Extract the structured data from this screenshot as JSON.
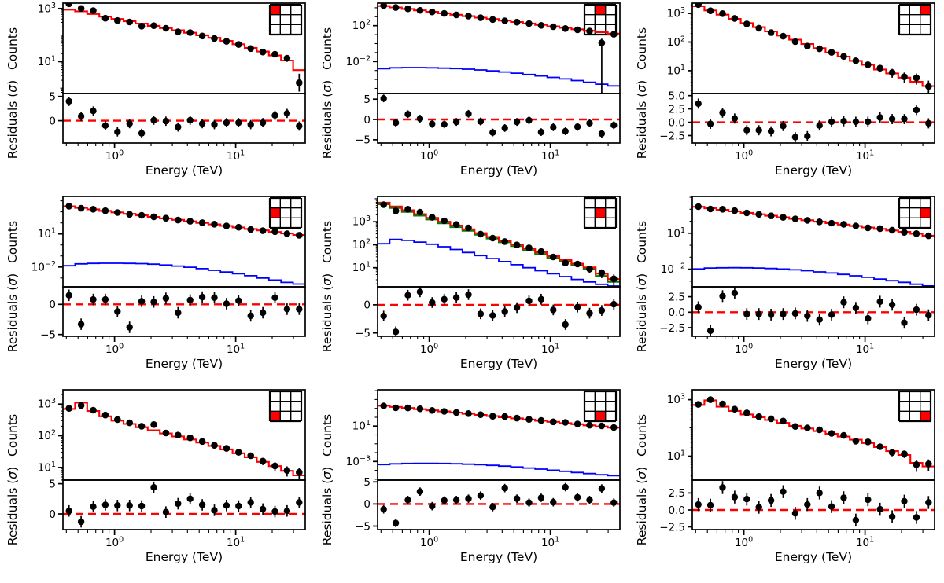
{
  "figure": {
    "xlabel": "Energy (TeV)",
    "ylabel_counts": "Counts",
    "ylabel_residuals": "Residuals (σ)",
    "grid_shape": [
      3,
      3
    ],
    "colors": {
      "model": "#ff0000",
      "model_secondary": "#008000",
      "background_line": "#0000ff",
      "data_points": "#000000",
      "zero_line": "#ff0000",
      "inset_cell": "#ff0000",
      "axes": "#000000"
    },
    "x_tick_exponents": [
      0,
      1
    ],
    "x_minor_ticks": [
      0.4,
      0.5,
      0.6,
      0.7,
      0.8,
      0.9,
      2,
      3,
      4,
      5,
      6,
      7,
      8,
      9,
      20,
      30
    ]
  },
  "energy_bin_edges": [
    0.375,
    0.472,
    0.594,
    0.748,
    0.942,
    1.186,
    1.493,
    1.88,
    2.366,
    2.979,
    3.75,
    4.721,
    5.943,
    7.482,
    9.419,
    11.858,
    14.929,
    18.795,
    23.662,
    29.79,
    37.5
  ],
  "energy_centers": [
    0.421,
    0.53,
    0.667,
    0.84,
    1.057,
    1.331,
    1.676,
    2.11,
    2.656,
    3.343,
    4.209,
    5.299,
    6.671,
    8.398,
    10.573,
    13.311,
    16.757,
    21.096,
    26.559,
    33.437
  ],
  "chart_data": [
    {
      "type": "line",
      "name": "spectrum-top-left",
      "inset_cell": [
        0,
        0
      ],
      "ylim_log": [
        -0.2,
        3.2
      ],
      "y_tick_exponents": [
        3,
        1
      ],
      "y_minor": true,
      "model": [
        900,
        780,
        620,
        490,
        400,
        330,
        270,
        222,
        182,
        150,
        122,
        98,
        78,
        60,
        45,
        33,
        24,
        17,
        11,
        4.8
      ],
      "background": null,
      "model_secondary": null,
      "counts": [
        1500,
        1000,
        830,
        430,
        350,
        310,
        215,
        225,
        180,
        132,
        123,
        92,
        74,
        58,
        44,
        31,
        23,
        19,
        13.5,
        1.6
      ],
      "residuals": [
        4.0,
        0.9,
        2.0,
        -1.0,
        -2.3,
        -0.6,
        -2.6,
        0.1,
        -0.1,
        -1.3,
        0.1,
        -0.6,
        -0.8,
        -0.4,
        -0.4,
        -0.8,
        -0.4,
        1.1,
        1.5,
        -1.1
      ],
      "resid_tick_values": [
        5,
        0
      ],
      "resid_tick_labels": [
        "5",
        "0"
      ],
      "resid_ylim": [
        -4.6,
        5.6
      ],
      "big_errors": [
        {
          "i": 19,
          "lo": 0.75,
          "hi": 3.5
        }
      ]
    },
    {
      "type": "line",
      "name": "spectrum-top-middle",
      "inset_cell": [
        0,
        1
      ],
      "ylim_log": [
        -5.57,
        4.52
      ],
      "y_tick_exponents": [
        2,
        -2
      ],
      "y_minor": false,
      "model": [
        15800,
        10900,
        7500,
        5150,
        3540,
        2430,
        1670,
        1150,
        790,
        545,
        375,
        258,
        177,
        122,
        84,
        57,
        40,
        27,
        19,
        13
      ],
      "background": [
        0.0016,
        0.002,
        0.0021,
        0.0021,
        0.002,
        0.00185,
        0.00165,
        0.0014,
        0.00115,
        0.0009,
        0.00068,
        0.0005,
        0.00036,
        0.00025,
        0.00017,
        0.000115,
        7.5e-05,
        4.8e-05,
        3e-05,
        1.9e-05
      ],
      "model_secondary": null,
      "counts": [
        17800,
        10700,
        7800,
        5200,
        3440,
        2330,
        1630,
        1210,
        775,
        495,
        350,
        250,
        174,
        108,
        77,
        49,
        35,
        25,
        1.2,
        11
      ],
      "residuals": [
        5.2,
        -0.8,
        1.3,
        0.2,
        -1.1,
        -1.2,
        -0.6,
        1.4,
        -0.5,
        -3.2,
        -2.1,
        -0.6,
        -0.2,
        -3.1,
        -1.9,
        -2.9,
        -1.8,
        -0.9,
        -3.5,
        -1.4
      ],
      "resid_tick_values": [
        5,
        0,
        -5
      ],
      "resid_tick_labels": [
        "5",
        "0",
        "−5"
      ],
      "resid_ylim": [
        -5.8,
        6.4
      ],
      "big_errors": [
        {
          "i": 18,
          "lo": 3e-06,
          "hi": 3.5
        }
      ]
    },
    {
      "type": "line",
      "name": "spectrum-top-right",
      "inset_cell": [
        0,
        2
      ],
      "ylim_log": [
        0.2,
        3.36
      ],
      "y_tick_exponents": [
        3,
        2,
        1
      ],
      "y_minor": true,
      "model": [
        1780,
        1270,
        905,
        645,
        460,
        330,
        235,
        168,
        120,
        85,
        61,
        43,
        31,
        22,
        16,
        11,
        8,
        5.7,
        4.1,
        2.9
      ],
      "background": null,
      "model_secondary": null,
      "counts": [
        2050,
        1240,
        990,
        670,
        430,
        305,
        213,
        160,
        103,
        72,
        58,
        43.5,
        31.5,
        22.2,
        16.2,
        12.2,
        8.6,
        6.1,
        5.6,
        2.8
      ],
      "residuals": [
        3.5,
        -0.3,
        1.8,
        0.7,
        -1.5,
        -1.5,
        -1.7,
        -0.7,
        -2.8,
        -2.6,
        -0.6,
        0.1,
        0.2,
        0.1,
        0.1,
        0.9,
        0.6,
        0.6,
        2.3,
        -0.2
      ],
      "resid_tick_values": [
        5,
        2.5,
        0,
        -2.5
      ],
      "resid_tick_labels": [
        "5.0",
        "2.5",
        "0.0",
        "−2.5"
      ],
      "resid_ylim": [
        -3.9,
        5.4
      ],
      "big_errors": []
    },
    {
      "type": "line",
      "name": "spectrum-middle-left",
      "inset_cell": [
        1,
        0
      ],
      "ylim_log": [
        -3.8,
        4.4
      ],
      "y_tick_exponents": [
        1,
        -2
      ],
      "y_minor": false,
      "model": [
        3160,
        2300,
        1690,
        1230,
        900,
        660,
        480,
        350,
        257,
        188,
        137,
        100,
        73,
        53,
        39,
        28,
        21,
        15,
        11,
        8
      ],
      "background": [
        0.013,
        0.019,
        0.021,
        0.022,
        0.022,
        0.021,
        0.02,
        0.018,
        0.015,
        0.012,
        0.0095,
        0.007,
        0.005,
        0.0035,
        0.0024,
        0.0016,
        0.001,
        0.00065,
        0.0004,
        0.00028
      ],
      "model_secondary": null,
      "counts": [
        3300,
        2100,
        1730,
        1260,
        870,
        590,
        490,
        355,
        266,
        180,
        140,
        104,
        76,
        53.2,
        40,
        25.5,
        19.5,
        16,
        10.4,
        7.6
      ],
      "residuals": [
        1.5,
        -3.3,
        0.8,
        0.8,
        -1.2,
        -3.8,
        0.5,
        0.4,
        1.0,
        -1.4,
        0.7,
        1.2,
        1.1,
        0.1,
        0.6,
        -1.9,
        -1.4,
        1.1,
        -0.8,
        -0.8
      ],
      "resid_tick_values": [
        0,
        -5
      ],
      "resid_tick_labels": [
        "0",
        "−5"
      ],
      "resid_ylim": [
        -5.3,
        2.9
      ],
      "big_errors": []
    },
    {
      "type": "line",
      "name": "spectrum-center",
      "inset_cell": [
        1,
        1
      ],
      "ylim_log": [
        0.17,
        4.1
      ],
      "y_tick_exponents": [
        3,
        2,
        1
      ],
      "y_minor": true,
      "model": [
        6760,
        4610,
        3150,
        2150,
        1470,
        1000,
        685,
        468,
        320,
        218,
        149,
        102,
        69,
        47,
        32,
        22,
        15,
        10.3,
        5.5,
        3.2
      ],
      "background": [
        110,
        170,
        155,
        130,
        105,
        82,
        62,
        46,
        34,
        25,
        18.5,
        13.5,
        10,
        7.4,
        5.5,
        4.1,
        3.1,
        2.4,
        1.9,
        1.6
      ],
      "model_secondary": [
        5750,
        3920,
        2680,
        1830,
        1250,
        850,
        580,
        400,
        272,
        185,
        127,
        87,
        59,
        40,
        27,
        19,
        12.8,
        8.8,
        4.4,
        2.4
      ],
      "counts": [
        5500,
        2950,
        3500,
        2600,
        1550,
        1100,
        760,
        540,
        290,
        195,
        137,
        98,
        73,
        51,
        29.5,
        16,
        14.5,
        8.8,
        6.0,
        3.3
      ],
      "residuals": [
        -2.0,
        -4.8,
        1.7,
        2.3,
        0.4,
        1.0,
        1.3,
        1.8,
        -1.6,
        -1.9,
        -1.2,
        -0.5,
        0.7,
        1.0,
        -0.9,
        -3.5,
        -0.4,
        -1.5,
        -1.0,
        0.1
      ],
      "resid_tick_values": [
        0,
        -5
      ],
      "resid_tick_labels": [
        "0",
        "−5"
      ],
      "resid_ylim": [
        -5.6,
        3.2
      ],
      "big_errors": []
    },
    {
      "type": "line",
      "name": "spectrum-middle-right",
      "inset_cell": [
        1,
        2
      ],
      "ylim_log": [
        -3.47,
        4.07
      ],
      "y_tick_exponents": [
        1,
        -2
      ],
      "y_minor": false,
      "model": [
        1600,
        1200,
        900,
        670,
        500,
        380,
        285,
        215,
        160,
        122,
        92,
        70,
        53,
        40,
        30,
        23,
        17,
        13,
        9,
        6.3
      ],
      "background": [
        0.0105,
        0.0125,
        0.013,
        0.0132,
        0.013,
        0.0125,
        0.0115,
        0.0103,
        0.0089,
        0.0075,
        0.006,
        0.0048,
        0.0037,
        0.0028,
        0.0021,
        0.0015,
        0.0011,
        0.0008,
        0.00056,
        0.0004
      ],
      "model_secondary": null,
      "counts": [
        1650,
        1050,
        1000,
        760,
        495,
        376,
        282,
        212,
        158,
        120,
        89,
        69,
        56,
        41,
        28.5,
        24.5,
        18,
        11.8,
        9.3,
        6.1
      ],
      "residuals": [
        0.8,
        -3.0,
        2.6,
        3.1,
        -0.3,
        -0.3,
        -0.4,
        -0.3,
        -0.2,
        -0.6,
        -1.2,
        -0.4,
        1.6,
        0.7,
        -1.0,
        1.7,
        1.2,
        -1.7,
        0.4,
        -0.5
      ],
      "resid_tick_values": [
        2.5,
        0,
        -2.5
      ],
      "resid_tick_labels": [
        "2.5",
        "0.0",
        "−2.5"
      ],
      "resid_ylim": [
        -3.9,
        4.1
      ],
      "big_errors": []
    },
    {
      "type": "line",
      "name": "spectrum-bottom-left",
      "inset_cell": [
        2,
        0
      ],
      "ylim_log": [
        0.6,
        3.45
      ],
      "y_tick_exponents": [
        3,
        2,
        1
      ],
      "y_minor": true,
      "model": [
        700,
        1100,
        600,
        410,
        300,
        235,
        185,
        148,
        118,
        95,
        76,
        61,
        48,
        37,
        28,
        21,
        15,
        11,
        7.8,
        5.6
      ],
      "background": null,
      "model_secondary": null,
      "counts": [
        730,
        900,
        640,
        450,
        325,
        255,
        200,
        225,
        122,
        105,
        86,
        66,
        50,
        40,
        30,
        23.5,
        15.8,
        11.2,
        8.0,
        7.0
      ],
      "residuals": [
        0.5,
        -1.3,
        1.2,
        1.5,
        1.4,
        1.4,
        1.3,
        4.4,
        0.3,
        1.7,
        2.5,
        1.5,
        0.6,
        1.4,
        1.3,
        1.9,
        0.8,
        0.4,
        0.5,
        1.9
      ],
      "resid_tick_values": [
        5,
        0
      ],
      "resid_tick_labels": [
        "5",
        "0"
      ],
      "resid_ylim": [
        -2.6,
        5.6
      ],
      "big_errors": []
    },
    {
      "type": "line",
      "name": "spectrum-bottom-middle",
      "inset_cell": [
        2,
        1
      ],
      "ylim_log": [
        -5.1,
        5.1
      ],
      "y_tick_exponents": [
        1,
        -3
      ],
      "y_minor": false,
      "model": [
        2000,
        1480,
        1100,
        815,
        600,
        445,
        330,
        245,
        180,
        134,
        99,
        74,
        55,
        40,
        30,
        22,
        16.5,
        12,
        9,
        6.7
      ],
      "background": [
        0.00045,
        0.00055,
        0.0006,
        0.00062,
        0.00062,
        0.0006,
        0.00056,
        0.0005,
        0.00044,
        0.00037,
        0.0003,
        0.00024,
        0.000185,
        0.00014,
        0.000105,
        7.8e-05,
        5.8e-05,
        4.3e-05,
        3.2e-05,
        2.5e-05
      ],
      "model_secondary": null,
      "counts": [
        1900,
        1150,
        1130,
        900,
        580,
        460,
        342,
        257,
        196,
        128,
        120,
        79,
        56.5,
        43,
        30.5,
        26.5,
        17.5,
        12.7,
        10.5,
        6.9
      ],
      "residuals": [
        -1.2,
        -4.3,
        0.9,
        2.8,
        -0.5,
        0.8,
        0.9,
        1.2,
        1.9,
        -0.7,
        3.6,
        1.2,
        0.3,
        1.4,
        0.4,
        3.8,
        1.5,
        0.9,
        3.5,
        0.3
      ],
      "resid_tick_values": [
        5,
        0,
        -5
      ],
      "resid_tick_labels": [
        "5",
        "0",
        "−5"
      ],
      "resid_ylim": [
        -5.8,
        5.4
      ],
      "big_errors": []
    },
    {
      "type": "line",
      "name": "spectrum-bottom-right",
      "inset_cell": [
        2,
        2
      ],
      "ylim_log": [
        0.15,
        3.35
      ],
      "y_tick_exponents": [
        3,
        1
      ],
      "y_minor": true,
      "model": [
        650,
        950,
        560,
        400,
        300,
        240,
        190,
        150,
        118,
        95,
        77,
        62,
        49,
        38,
        29,
        21,
        15,
        11,
        5.8,
        4.3
      ],
      "background": null,
      "model_secondary": null,
      "counts": [
        680,
        1000,
        700,
        460,
        340,
        250,
        210,
        175,
        112,
        100,
        86,
        64,
        54,
        34,
        32,
        21.5,
        13.5,
        12,
        5.0,
        5.3
      ],
      "residuals": [
        0.8,
        0.7,
        3.3,
        1.9,
        1.6,
        0.4,
        1.4,
        2.7,
        -0.5,
        0.8,
        2.5,
        0.5,
        1.8,
        -1.5,
        1.5,
        0.1,
        -1.0,
        1.3,
        -1.1,
        1.1
      ],
      "resid_tick_values": [
        2.5,
        0,
        -2.5
      ],
      "resid_tick_labels": [
        "2.5",
        "0.0",
        "−2.5"
      ],
      "resid_ylim": [
        -2.9,
        4.4
      ],
      "big_errors": []
    }
  ]
}
